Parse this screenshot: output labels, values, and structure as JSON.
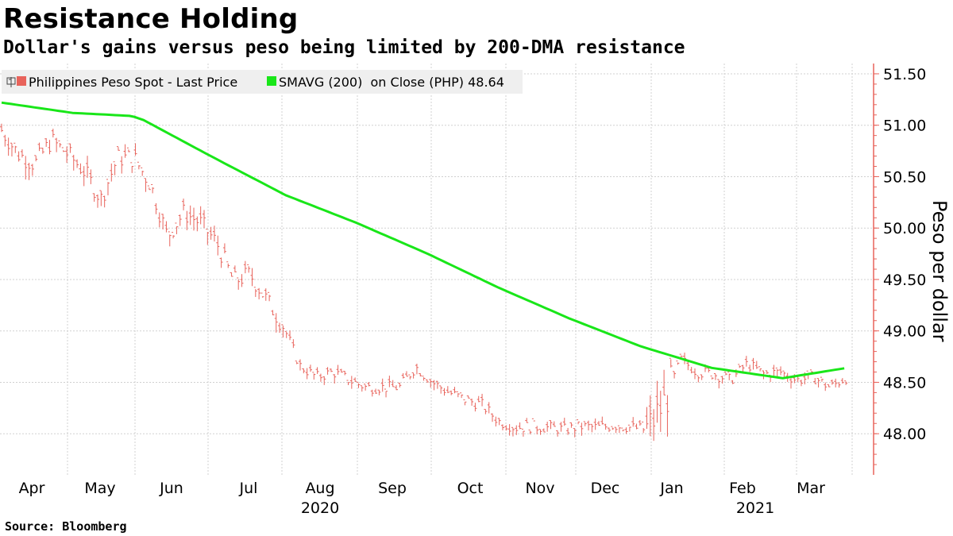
{
  "title": "Resistance Holding",
  "subtitle": "Dollar's gains versus peso being limited by 200-DMA resistance",
  "source": "Source: Bloomberg",
  "colors": {
    "spot": "#e8635b",
    "sma": "#19e619",
    "axis": "#e8635b",
    "grid": "#d0d0d0",
    "legend_bg": "#efefef"
  },
  "chart_data": {
    "type": "line",
    "ylabel": "Peso per dollar",
    "ylim": [
      47.6,
      51.6
    ],
    "yticks": [
      "51.50",
      "51.00",
      "50.50",
      "50.00",
      "49.50",
      "49.00",
      "48.50",
      "48.00"
    ],
    "x_months": [
      "Apr",
      "May",
      "Jun",
      "Jul",
      "Aug",
      "Sep",
      "Oct",
      "Nov",
      "Dec",
      "Jan",
      "Feb",
      "Mar"
    ],
    "x_years": [
      "2020",
      "2021"
    ],
    "legend": [
      {
        "name": "Philippines Peso Spot - Last Price",
        "icon": "bar-ohlc-icon"
      },
      {
        "name": "SMAVG (200)  on Close (PHP) 48.64",
        "icon": "green-square-icon"
      }
    ],
    "series": [
      {
        "name": "Philippines Peso Spot - Last Price",
        "style": "ohlc-bars",
        "x": [
          0,
          7,
          14,
          21,
          28,
          35,
          42,
          49,
          56,
          63,
          70,
          77,
          84,
          91,
          98,
          105,
          112,
          119,
          126,
          133,
          140,
          147,
          154,
          161,
          168,
          175,
          182,
          189,
          196,
          203,
          210,
          217,
          224,
          231,
          238,
          245,
          252,
          259,
          266,
          273,
          280,
          287,
          294,
          301,
          308,
          315,
          322,
          329,
          336,
          343,
          350,
          357
        ],
        "values": [
          50.95,
          50.72,
          50.62,
          50.85,
          50.72,
          50.55,
          50.28,
          50.68,
          50.68,
          50.42,
          49.92,
          50.15,
          50.05,
          49.85,
          49.48,
          49.55,
          49.3,
          49.05,
          48.66,
          48.55,
          48.6,
          48.52,
          48.45,
          48.45,
          48.45,
          48.65,
          48.5,
          48.4,
          48.33,
          48.28,
          48.12,
          48.06,
          48.07,
          48.06,
          48.04,
          48.07,
          48.06,
          48.08,
          48.06,
          48.04,
          48.3,
          48.72,
          48.6,
          48.58,
          48.52,
          48.68,
          48.58,
          48.6,
          48.52,
          48.55,
          48.45,
          48.55
        ]
      },
      {
        "name": "SMAVG (200)  on Close (PHP) 48.64",
        "style": "line",
        "x": [
          0,
          30,
          55,
          60,
          90,
          120,
          150,
          180,
          210,
          240,
          270,
          300,
          330,
          357
        ],
        "values": [
          51.22,
          51.12,
          51.09,
          51.05,
          50.68,
          50.32,
          50.05,
          49.75,
          49.42,
          49.12,
          48.85,
          48.64,
          48.54,
          48.64
        ]
      }
    ]
  }
}
